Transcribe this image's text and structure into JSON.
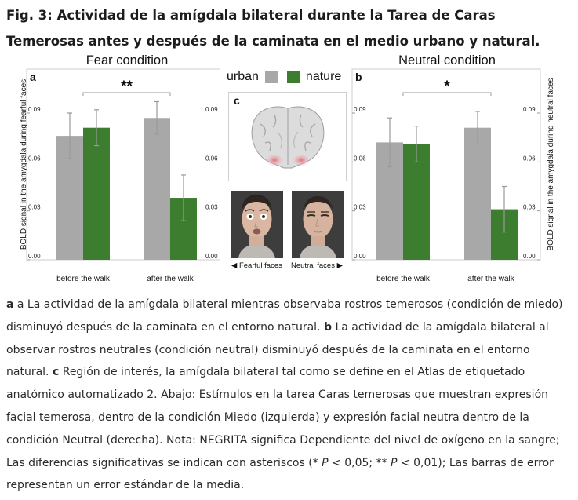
{
  "figure_title": "Fig. 3: Actividad de la amígdala bilateral durante la Tarea de Caras Temerosas antes y después de la caminata en el medio urbano y natural.",
  "legend": {
    "urban_label": "urban",
    "nature_label": "nature"
  },
  "colors": {
    "urban": "#a8a8a8",
    "nature": "#3c7d2f",
    "error_bar": "#9a9a9a",
    "bracket": "#9a9a9a"
  },
  "panel_c": {
    "letter": "c",
    "fearful_label": "◀ Fearful faces",
    "neutral_label": "Neutral faces ▶"
  },
  "chart_data": [
    {
      "type": "bar",
      "letter": "a",
      "title": "Fear condition",
      "ylabel": "BOLD signal in the amygdala during fearful faces",
      "categories": [
        "before the walk",
        "after the walk"
      ],
      "series": [
        {
          "name": "urban",
          "values": [
            0.076,
            0.087
          ],
          "errors": [
            0.014,
            0.01
          ]
        },
        {
          "name": "nature",
          "values": [
            0.081,
            0.038
          ],
          "errors": [
            0.011,
            0.014
          ]
        }
      ],
      "ylim": [
        0,
        0.09
      ],
      "yticks": [
        "0.00",
        "0.03",
        "0.06",
        "0.09"
      ],
      "significance": "**",
      "grid": false
    },
    {
      "type": "bar",
      "letter": "b",
      "title": "Neutral condition",
      "ylabel": "BOLD signal in the amygdala during neutral faces",
      "categories": [
        "before the walk",
        "after the walk"
      ],
      "series": [
        {
          "name": "urban",
          "values": [
            0.072,
            0.081
          ],
          "errors": [
            0.015,
            0.01
          ]
        },
        {
          "name": "nature",
          "values": [
            0.071,
            0.031
          ],
          "errors": [
            0.011,
            0.014
          ]
        }
      ],
      "ylim": [
        0,
        0.09
      ],
      "yticks": [
        "0.00",
        "0.03",
        "0.06",
        "0.09"
      ],
      "significance": "*",
      "grid": false
    }
  ],
  "caption": {
    "a_letter": "a",
    "a_text": " a La actividad de la amígdala bilateral mientras observaba rostros temerosos (condición de miedo) disminuyó después de la caminata en el entorno natural. ",
    "b_letter": "b",
    "b_text": " La actividad de la amígdala bilateral al observar rostros neutrales (condición neutral) disminuyó después de la caminata en el entorno natural. ",
    "c_letter": "c",
    "c_text": " Región de interés, la amígdala bilateral tal como se define en el Atlas de etiquetado anatómico automatizado 2. Abajo: Estímulos en la tarea Caras temerosas que muestran expresión facial temerosa, dentro de la condición Miedo (izquierda) y expresión facial neutra dentro de la condición Neutral (derecha). Nota: NEGRITA significa Dependiente del nivel de oxígeno en la sangre; Las diferencias significativas se indican con asteriscos (* ",
    "p1": "P",
    "mid_text": " < 0,05; ** ",
    "p2": "P",
    "end_text": " < 0,01); Las barras de error representan un error estándar de la media."
  }
}
